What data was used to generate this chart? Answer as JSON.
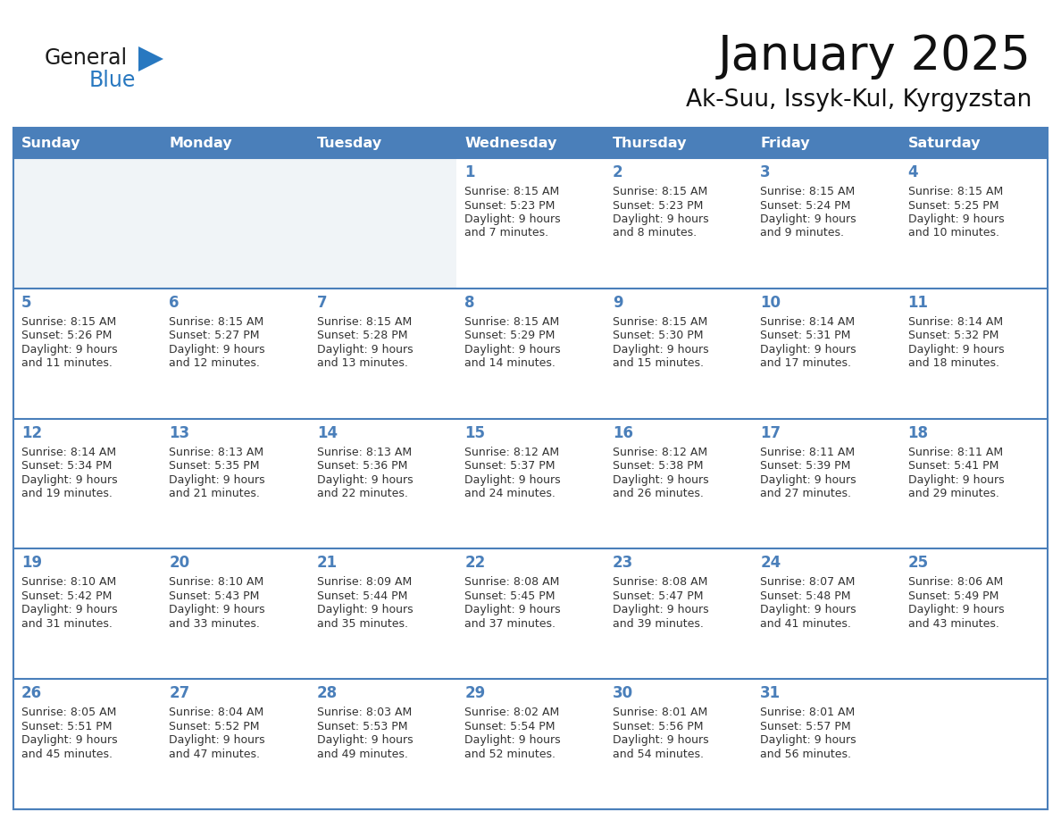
{
  "title": "January 2025",
  "subtitle": "Ak-Suu, Issyk-Kul, Kyrgyzstan",
  "days_of_week": [
    "Sunday",
    "Monday",
    "Tuesday",
    "Wednesday",
    "Thursday",
    "Friday",
    "Saturday"
  ],
  "header_bg": "#4a7fba",
  "header_text": "#ffffff",
  "cell_bg_white": "#ffffff",
  "cell_bg_light": "#f0f4f7",
  "border_color": "#4a7fba",
  "day_num_color": "#4a7fba",
  "cell_text_color": "#333333",
  "logo_general_color": "#1a1a1a",
  "logo_blue_color": "#2878c0",
  "calendar_data": [
    [
      null,
      null,
      null,
      {
        "day": 1,
        "sunrise": "8:15 AM",
        "sunset": "5:23 PM",
        "daylight": "9 hours and 7 minutes."
      },
      {
        "day": 2,
        "sunrise": "8:15 AM",
        "sunset": "5:23 PM",
        "daylight": "9 hours and 8 minutes."
      },
      {
        "day": 3,
        "sunrise": "8:15 AM",
        "sunset": "5:24 PM",
        "daylight": "9 hours and 9 minutes."
      },
      {
        "day": 4,
        "sunrise": "8:15 AM",
        "sunset": "5:25 PM",
        "daylight": "9 hours and 10 minutes."
      }
    ],
    [
      {
        "day": 5,
        "sunrise": "8:15 AM",
        "sunset": "5:26 PM",
        "daylight": "9 hours and 11 minutes."
      },
      {
        "day": 6,
        "sunrise": "8:15 AM",
        "sunset": "5:27 PM",
        "daylight": "9 hours and 12 minutes."
      },
      {
        "day": 7,
        "sunrise": "8:15 AM",
        "sunset": "5:28 PM",
        "daylight": "9 hours and 13 minutes."
      },
      {
        "day": 8,
        "sunrise": "8:15 AM",
        "sunset": "5:29 PM",
        "daylight": "9 hours and 14 minutes."
      },
      {
        "day": 9,
        "sunrise": "8:15 AM",
        "sunset": "5:30 PM",
        "daylight": "9 hours and 15 minutes."
      },
      {
        "day": 10,
        "sunrise": "8:14 AM",
        "sunset": "5:31 PM",
        "daylight": "9 hours and 17 minutes."
      },
      {
        "day": 11,
        "sunrise": "8:14 AM",
        "sunset": "5:32 PM",
        "daylight": "9 hours and 18 minutes."
      }
    ],
    [
      {
        "day": 12,
        "sunrise": "8:14 AM",
        "sunset": "5:34 PM",
        "daylight": "9 hours and 19 minutes."
      },
      {
        "day": 13,
        "sunrise": "8:13 AM",
        "sunset": "5:35 PM",
        "daylight": "9 hours and 21 minutes."
      },
      {
        "day": 14,
        "sunrise": "8:13 AM",
        "sunset": "5:36 PM",
        "daylight": "9 hours and 22 minutes."
      },
      {
        "day": 15,
        "sunrise": "8:12 AM",
        "sunset": "5:37 PM",
        "daylight": "9 hours and 24 minutes."
      },
      {
        "day": 16,
        "sunrise": "8:12 AM",
        "sunset": "5:38 PM",
        "daylight": "9 hours and 26 minutes."
      },
      {
        "day": 17,
        "sunrise": "8:11 AM",
        "sunset": "5:39 PM",
        "daylight": "9 hours and 27 minutes."
      },
      {
        "day": 18,
        "sunrise": "8:11 AM",
        "sunset": "5:41 PM",
        "daylight": "9 hours and 29 minutes."
      }
    ],
    [
      {
        "day": 19,
        "sunrise": "8:10 AM",
        "sunset": "5:42 PM",
        "daylight": "9 hours and 31 minutes."
      },
      {
        "day": 20,
        "sunrise": "8:10 AM",
        "sunset": "5:43 PM",
        "daylight": "9 hours and 33 minutes."
      },
      {
        "day": 21,
        "sunrise": "8:09 AM",
        "sunset": "5:44 PM",
        "daylight": "9 hours and 35 minutes."
      },
      {
        "day": 22,
        "sunrise": "8:08 AM",
        "sunset": "5:45 PM",
        "daylight": "9 hours and 37 minutes."
      },
      {
        "day": 23,
        "sunrise": "8:08 AM",
        "sunset": "5:47 PM",
        "daylight": "9 hours and 39 minutes."
      },
      {
        "day": 24,
        "sunrise": "8:07 AM",
        "sunset": "5:48 PM",
        "daylight": "9 hours and 41 minutes."
      },
      {
        "day": 25,
        "sunrise": "8:06 AM",
        "sunset": "5:49 PM",
        "daylight": "9 hours and 43 minutes."
      }
    ],
    [
      {
        "day": 26,
        "sunrise": "8:05 AM",
        "sunset": "5:51 PM",
        "daylight": "9 hours and 45 minutes."
      },
      {
        "day": 27,
        "sunrise": "8:04 AM",
        "sunset": "5:52 PM",
        "daylight": "9 hours and 47 minutes."
      },
      {
        "day": 28,
        "sunrise": "8:03 AM",
        "sunset": "5:53 PM",
        "daylight": "9 hours and 49 minutes."
      },
      {
        "day": 29,
        "sunrise": "8:02 AM",
        "sunset": "5:54 PM",
        "daylight": "9 hours and 52 minutes."
      },
      {
        "day": 30,
        "sunrise": "8:01 AM",
        "sunset": "5:56 PM",
        "daylight": "9 hours and 54 minutes."
      },
      {
        "day": 31,
        "sunrise": "8:01 AM",
        "sunset": "5:57 PM",
        "daylight": "9 hours and 56 minutes."
      },
      null
    ]
  ]
}
